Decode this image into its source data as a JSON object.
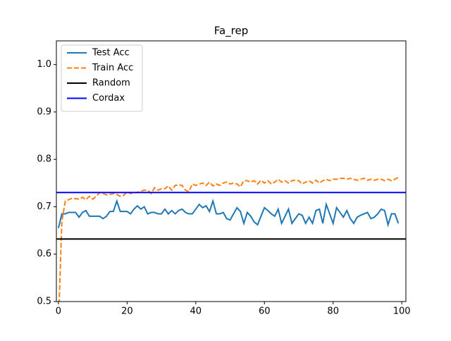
{
  "chart_data": {
    "type": "line",
    "title": "Fa_rep",
    "x": [
      0,
      1,
      2,
      3,
      4,
      5,
      6,
      7,
      8,
      9,
      10,
      11,
      12,
      13,
      14,
      15,
      16,
      17,
      18,
      19,
      20,
      21,
      22,
      23,
      24,
      25,
      26,
      27,
      28,
      29,
      30,
      31,
      32,
      33,
      34,
      35,
      36,
      37,
      38,
      39,
      40,
      41,
      42,
      43,
      44,
      45,
      46,
      47,
      48,
      49,
      50,
      51,
      52,
      53,
      54,
      55,
      56,
      57,
      58,
      59,
      60,
      61,
      62,
      63,
      64,
      65,
      66,
      67,
      68,
      69,
      70,
      71,
      72,
      73,
      74,
      75,
      76,
      77,
      78,
      79,
      80,
      81,
      82,
      83,
      84,
      85,
      86,
      87,
      88,
      89,
      90,
      91,
      92,
      93,
      94,
      95,
      96,
      97,
      98,
      99
    ],
    "series": [
      {
        "name": "Test Acc",
        "color": "#1f77b4",
        "dash": false,
        "values": [
          0.655,
          0.685,
          0.685,
          0.688,
          0.688,
          0.688,
          0.678,
          0.688,
          0.692,
          0.68,
          0.68,
          0.68,
          0.68,
          0.675,
          0.68,
          0.69,
          0.69,
          0.712,
          0.69,
          0.69,
          0.69,
          0.685,
          0.695,
          0.702,
          0.695,
          0.7,
          0.685,
          0.688,
          0.688,
          0.685,
          0.685,
          0.695,
          0.685,
          0.692,
          0.685,
          0.692,
          0.695,
          0.688,
          0.685,
          0.685,
          0.695,
          0.705,
          0.698,
          0.702,
          0.69,
          0.712,
          0.685,
          0.685,
          0.688,
          0.675,
          0.672,
          0.685,
          0.698,
          0.69,
          0.665,
          0.688,
          0.68,
          0.668,
          0.662,
          0.68,
          0.698,
          0.692,
          0.685,
          0.68,
          0.695,
          0.665,
          0.68,
          0.695,
          0.665,
          0.675,
          0.685,
          0.682,
          0.665,
          0.678,
          0.665,
          0.692,
          0.695,
          0.665,
          0.705,
          0.685,
          0.665,
          0.698,
          0.688,
          0.678,
          0.692,
          0.675,
          0.665,
          0.678,
          0.682,
          0.685,
          0.688,
          0.675,
          0.678,
          0.685,
          0.695,
          0.692,
          0.662,
          0.685,
          0.685,
          0.665
        ]
      },
      {
        "name": "Train Acc",
        "color": "#ff7f0e",
        "dash": true,
        "values": [
          0.45,
          0.67,
          0.712,
          0.715,
          0.718,
          0.717,
          0.716,
          0.72,
          0.715,
          0.722,
          0.716,
          0.722,
          0.73,
          0.728,
          0.725,
          0.726,
          0.728,
          0.726,
          0.722,
          0.724,
          0.732,
          0.728,
          0.73,
          0.73,
          0.733,
          0.735,
          0.735,
          0.728,
          0.74,
          0.735,
          0.738,
          0.738,
          0.744,
          0.735,
          0.745,
          0.746,
          0.745,
          0.735,
          0.732,
          0.748,
          0.745,
          0.748,
          0.75,
          0.745,
          0.752,
          0.744,
          0.748,
          0.745,
          0.75,
          0.752,
          0.748,
          0.75,
          0.748,
          0.742,
          0.755,
          0.755,
          0.752,
          0.755,
          0.748,
          0.756,
          0.75,
          0.755,
          0.748,
          0.752,
          0.758,
          0.752,
          0.755,
          0.75,
          0.755,
          0.756,
          0.755,
          0.748,
          0.752,
          0.755,
          0.75,
          0.756,
          0.75,
          0.755,
          0.758,
          0.755,
          0.758,
          0.758,
          0.76,
          0.76,
          0.758,
          0.76,
          0.758,
          0.756,
          0.758,
          0.76,
          0.756,
          0.758,
          0.756,
          0.758,
          0.758,
          0.755,
          0.758,
          0.755,
          0.758,
          0.762
        ]
      }
    ],
    "hlines": [
      {
        "name": "Random",
        "color": "#000000",
        "value": 0.632
      },
      {
        "name": "Cordax",
        "color": "#0000ff",
        "value": 0.73
      }
    ],
    "xlim": [
      -0.6,
      101.2
    ],
    "ylim": [
      0.5,
      1.05
    ],
    "xticks": [
      0,
      20,
      40,
      60,
      80,
      100
    ],
    "yticks": [
      0.5,
      0.6,
      0.7,
      0.8,
      0.9,
      {
        "value": 1.0,
        "label": "1.0"
      }
    ],
    "legend": "upper-left"
  }
}
